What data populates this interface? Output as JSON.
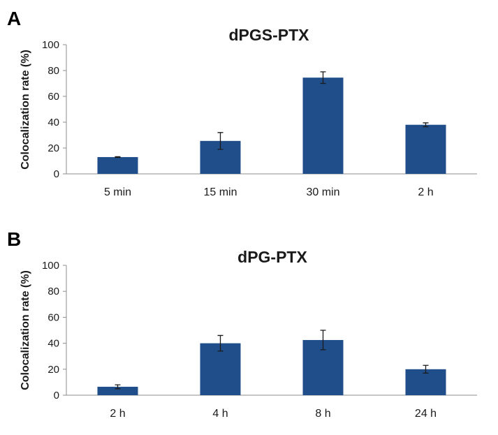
{
  "colors": {
    "bar": "#1f4e8a",
    "axis": "#8c8c8c",
    "text": "#1a1a1a"
  },
  "chart_data": [
    {
      "type": "bar",
      "panel": "A",
      "title": "dPGS-PTX",
      "ylabel": "Colocalization rate (%)",
      "xlabel": "",
      "ylim": [
        0,
        100
      ],
      "yticks": [
        0,
        20,
        40,
        60,
        80,
        100
      ],
      "categories": [
        "5 min",
        "15 min",
        "30 min",
        "2 h"
      ],
      "values": [
        13,
        25.5,
        74.5,
        38
      ],
      "errors": [
        0.3,
        6.5,
        4.5,
        1.5
      ],
      "grid": false,
      "legend": "none"
    },
    {
      "type": "bar",
      "panel": "B",
      "title": "dPG-PTX",
      "ylabel": "Colocalization rate (%)",
      "xlabel": "",
      "ylim": [
        0,
        100
      ],
      "yticks": [
        0,
        20,
        40,
        60,
        80,
        100
      ],
      "categories": [
        "2 h",
        "4 h",
        "8 h",
        "24 h"
      ],
      "values": [
        6.5,
        40,
        42.5,
        20
      ],
      "errors": [
        1.5,
        6,
        7.5,
        3
      ],
      "grid": false,
      "legend": "none"
    }
  ]
}
